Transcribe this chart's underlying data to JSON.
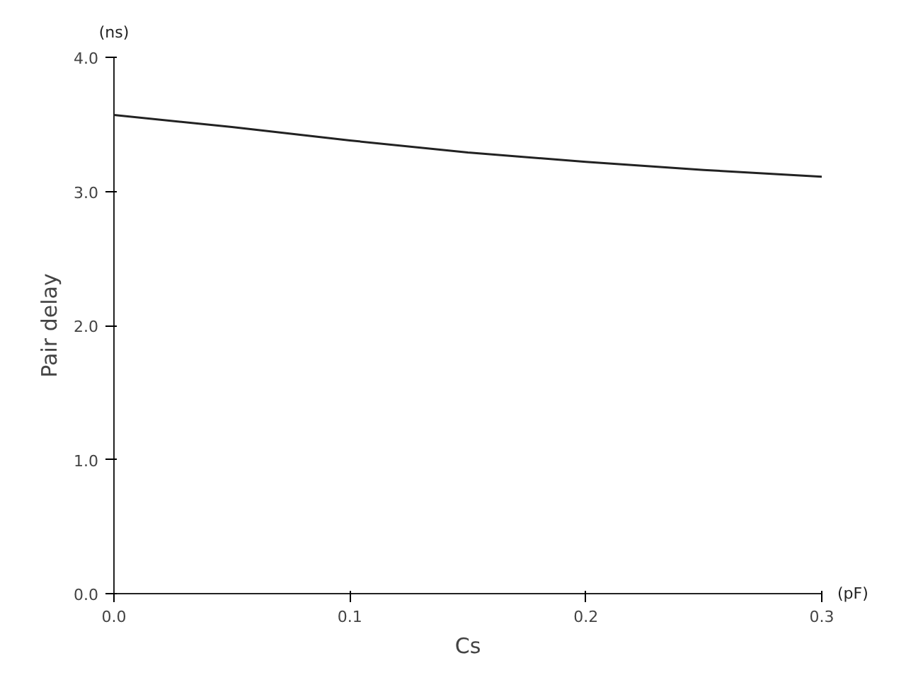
{
  "chart_data": {
    "type": "line",
    "xlabel": "Cs",
    "ylabel": "Pair delay",
    "annotations": [
      "(ns)",
      "(pF)"
    ],
    "x": [
      0.0,
      0.05,
      0.1,
      0.15,
      0.2,
      0.25,
      0.3
    ],
    "series": [
      {
        "color": "#222222",
        "values": [
          3.57,
          3.48,
          3.38,
          3.29,
          3.22,
          3.16,
          3.11
        ]
      }
    ],
    "xlim": [
      0.0,
      0.3
    ],
    "ylim": [
      0.0,
      4.0
    ],
    "xticks": [
      {
        "value": 0.0,
        "label": "0.0"
      },
      {
        "value": 0.1,
        "label": "0.1"
      },
      {
        "value": 0.2,
        "label": "0.2"
      },
      {
        "value": 0.3,
        "label": "0.3"
      }
    ],
    "yticks": [
      {
        "value": 0.0,
        "label": "0.0"
      },
      {
        "value": 1.0,
        "label": "1.0"
      },
      {
        "value": 2.0,
        "label": "2.0"
      },
      {
        "value": 3.0,
        "label": "3.0"
      },
      {
        "value": 4.0,
        "label": "4.0"
      }
    ],
    "grid": false,
    "marker": "none",
    "line_style": "solid"
  }
}
